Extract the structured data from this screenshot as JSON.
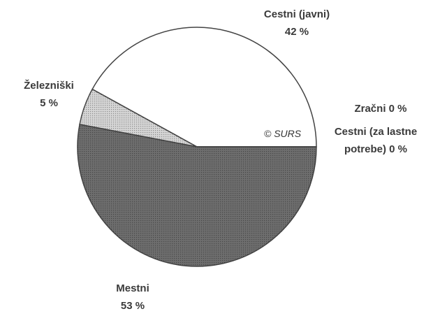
{
  "chart_data": {
    "type": "pie",
    "categories": [
      "Cestni (javni)",
      "Železniški",
      "Mestni",
      "Zračni",
      "Cestni (za lastne potrebe)"
    ],
    "values": [
      42,
      5,
      53,
      0,
      0
    ],
    "value_labels": [
      "42 %",
      "5 %",
      "53 %",
      "0 %",
      "0 %"
    ],
    "colors": [
      "#ffffff",
      "#d6d6d6",
      "#6e6e6e",
      "#444444",
      "#444444"
    ],
    "annotation": "© SURS"
  }
}
